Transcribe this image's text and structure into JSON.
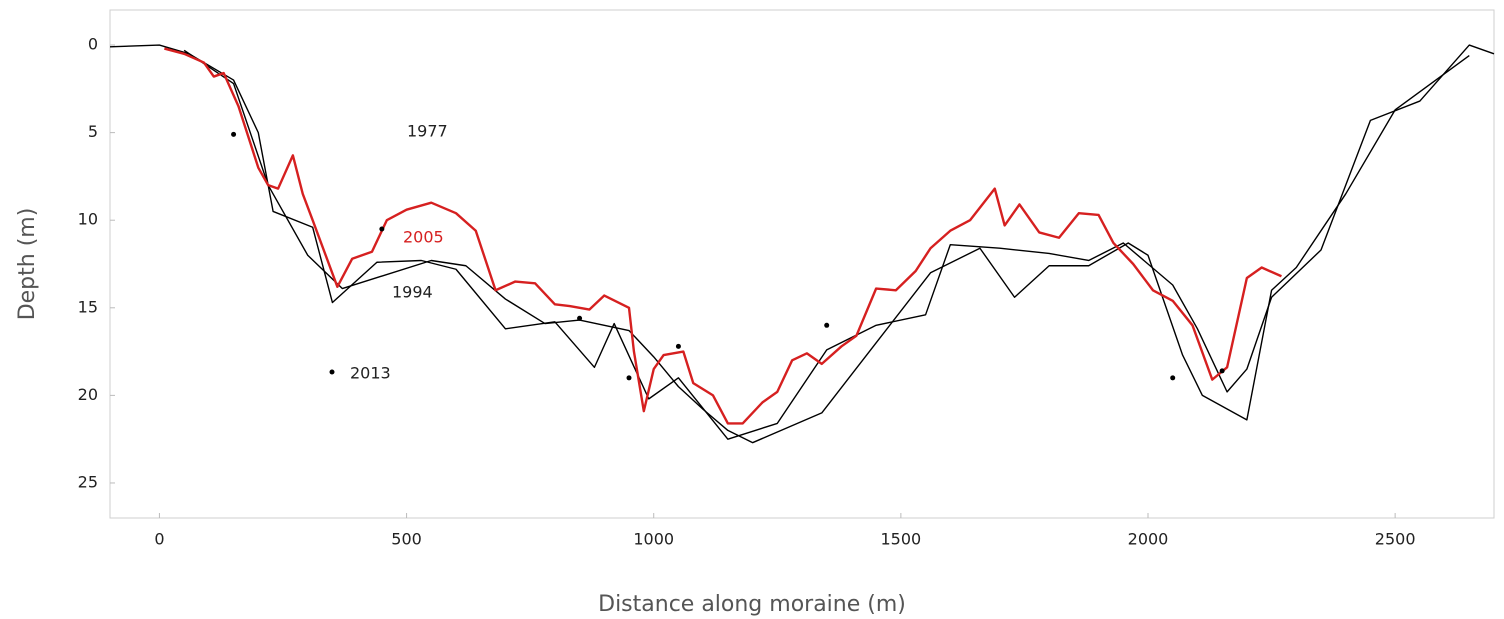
{
  "chart_data": {
    "type": "line",
    "xlabel": "Distance along moraine (m)",
    "ylabel": "Depth (m)",
    "xlim": [
      -100,
      2700
    ],
    "ylim": [
      -2,
      27
    ],
    "y_reversed": true,
    "xticks": [
      0,
      500,
      1000,
      1500,
      2000,
      2500
    ],
    "yticks": [
      0,
      5,
      10,
      15,
      20,
      25
    ],
    "grid": false,
    "series": [
      {
        "name": "1977",
        "color": "#000000",
        "style": "line",
        "x": [
          -100,
          0,
          60,
          150,
          200,
          230,
          310,
          350,
          440,
          530,
          600,
          700,
          800,
          880,
          920,
          990,
          1050,
          1150,
          1250,
          1350,
          1450,
          1550,
          1600,
          1700,
          1800,
          1880,
          1950,
          2050,
          2100,
          2160,
          2200,
          2250,
          2350,
          2450,
          2550,
          2650,
          2700
        ],
        "values": [
          0.1,
          0,
          0.5,
          2,
          5,
          9.5,
          10.4,
          14.7,
          12.4,
          12.3,
          12.8,
          16.2,
          15.8,
          18.4,
          15.9,
          20.2,
          19,
          22.5,
          21.6,
          17.4,
          16,
          15.4,
          11.4,
          11.6,
          11.9,
          12.3,
          11.3,
          13.7,
          16.2,
          19.8,
          18.5,
          14.4,
          11.7,
          4.3,
          3.2,
          0,
          0.5
        ]
      },
      {
        "name": "1994",
        "color": "#000000",
        "style": "line",
        "x": [
          50,
          150,
          220,
          300,
          370,
          550,
          620,
          700,
          780,
          850,
          950,
          1000,
          1050,
          1100,
          1150,
          1200,
          1340,
          1450,
          1560,
          1660,
          1730,
          1800,
          1880,
          1960,
          2000,
          2070,
          2110,
          2200,
          2250,
          2300,
          2400,
          2500,
          2650
        ],
        "values": [
          0.3,
          2.2,
          8,
          12,
          13.9,
          12.3,
          12.6,
          14.5,
          15.9,
          15.7,
          16.3,
          17.8,
          19.5,
          20.8,
          22,
          22.7,
          21,
          17,
          13,
          11.6,
          14.4,
          12.6,
          12.6,
          11.3,
          12,
          17.7,
          20,
          21.4,
          14,
          12.7,
          8.5,
          3.7,
          0.6
        ]
      },
      {
        "name": "2005",
        "color": "#d62020",
        "style": "line",
        "x": [
          10,
          50,
          90,
          110,
          130,
          160,
          200,
          220,
          240,
          270,
          290,
          310,
          360,
          390,
          430,
          460,
          500,
          550,
          600,
          640,
          680,
          720,
          760,
          800,
          830,
          870,
          900,
          950,
          960,
          980,
          1000,
          1020,
          1060,
          1080,
          1120,
          1150,
          1180,
          1220,
          1250,
          1280,
          1310,
          1340,
          1380,
          1410,
          1450,
          1490,
          1530,
          1560,
          1600,
          1640,
          1690,
          1710,
          1740,
          1780,
          1820,
          1860,
          1900,
          1930,
          1970,
          2010,
          2050,
          2090,
          2130,
          2160,
          2200,
          2230,
          2270
        ],
        "values": [
          0.2,
          0.5,
          1,
          1.8,
          1.6,
          3.5,
          7,
          8,
          8.2,
          6.3,
          8.5,
          10,
          13.8,
          12.2,
          11.8,
          10,
          9.4,
          9,
          9.6,
          10.6,
          14,
          13.5,
          13.6,
          14.8,
          14.9,
          15.1,
          14.3,
          15,
          17.5,
          20.9,
          18.5,
          17.7,
          17.5,
          19.3,
          20,
          21.6,
          21.6,
          20.4,
          19.8,
          18,
          17.6,
          18.2,
          17.2,
          16.6,
          13.9,
          14,
          12.9,
          11.6,
          10.6,
          10,
          8.2,
          10.3,
          9.1,
          10.7,
          11,
          9.6,
          9.7,
          11.3,
          12.5,
          14,
          14.6,
          16,
          19.1,
          18.4,
          13.3,
          12.7,
          13.2
        ]
      },
      {
        "name": "2013",
        "color": "#000000",
        "style": "points",
        "x": [
          150,
          450,
          850,
          950,
          1050,
          1350,
          2050,
          2150
        ],
        "values": [
          5.1,
          10.5,
          15.6,
          19,
          17.2,
          16,
          19,
          18.6
        ]
      }
    ]
  }
}
